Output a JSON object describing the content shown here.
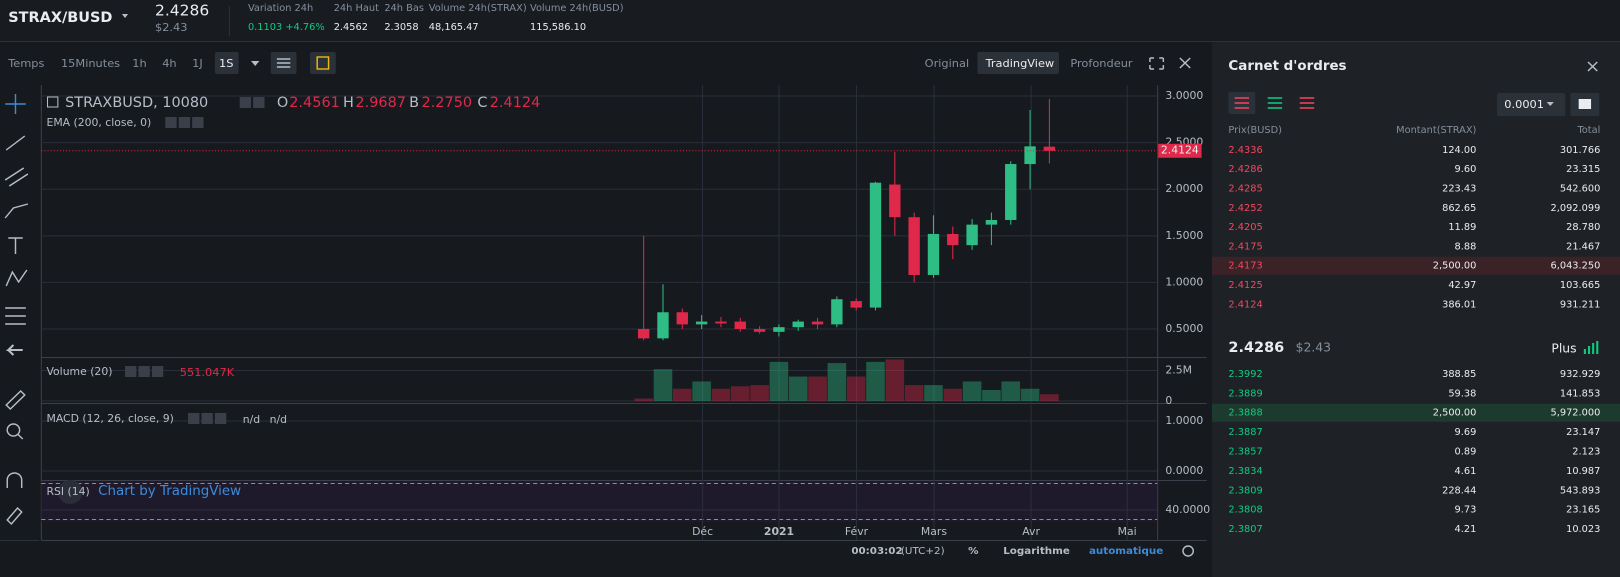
{
  "header": {
    "pair": "STRAX/BUSD",
    "price": "2.4286",
    "price_usd": "$2.43",
    "stats": [
      {
        "label": "Variation 24h",
        "value": "0.1103 +4.76%"
      },
      {
        "label": "24h Haut",
        "value": "2.4562"
      },
      {
        "label": "24h Bas",
        "value": "2.3058"
      },
      {
        "label": "Volume 24h(STRAX)",
        "value": "48,165.47"
      },
      {
        "label": "Volume 24h(BUSD)",
        "value": "115,586.10"
      }
    ]
  },
  "toolbar": {
    "intervals": [
      "Temps",
      "15Minutes",
      "1h",
      "4h",
      "1J",
      "1S"
    ],
    "views": [
      "Original",
      "TradingView",
      "Profondeur"
    ]
  },
  "chart": {
    "symbol": "STRAXBUSD, 10080",
    "ohlc": [
      {
        "key": "O",
        "value": "2.4561"
      },
      {
        "key": "H",
        "value": "2.9687"
      },
      {
        "key": "B",
        "value": "2.2750"
      },
      {
        "key": "C",
        "value": "2.4124"
      }
    ],
    "ema_label": "EMA (200, close, 0)",
    "last_price": {
      "value": 2.4124,
      "label": "2.4124"
    },
    "ylim": [
      0.2,
      3.118
    ],
    "yticks": [
      {
        "value": 0.5,
        "label": "0.5000"
      },
      {
        "value": 1.0,
        "label": "1.0000"
      },
      {
        "value": 1.5,
        "label": "1.5000"
      },
      {
        "value": 2.0,
        "label": "2.0000"
      },
      {
        "value": 2.5,
        "label": "2.5000"
      },
      {
        "value": 3.0,
        "label": "3.0000"
      }
    ],
    "up_color": "#2ebd85",
    "down_color": "#e0294a",
    "candles": [
      {
        "open": 0.5,
        "high": 1.5,
        "low": 0.38,
        "close": 0.4,
        "volume": 200000
      },
      {
        "open": 0.4,
        "high": 0.98,
        "low": 0.38,
        "close": 0.68,
        "volume": 2600000
      },
      {
        "open": 0.68,
        "high": 0.72,
        "low": 0.5,
        "close": 0.55,
        "volume": 1000000
      },
      {
        "open": 0.55,
        "high": 0.65,
        "low": 0.5,
        "close": 0.58,
        "volume": 1600000
      },
      {
        "open": 0.58,
        "high": 0.63,
        "low": 0.52,
        "close": 0.56,
        "volume": 1000000
      },
      {
        "open": 0.58,
        "high": 0.62,
        "low": 0.47,
        "close": 0.5,
        "volume": 1200000
      },
      {
        "open": 0.5,
        "high": 0.53,
        "low": 0.45,
        "close": 0.47,
        "volume": 1300000
      },
      {
        "open": 0.47,
        "high": 0.55,
        "low": 0.42,
        "close": 0.52,
        "volume": 3200000
      },
      {
        "open": 0.52,
        "high": 0.6,
        "low": 0.48,
        "close": 0.58,
        "volume": 2000000
      },
      {
        "open": 0.58,
        "high": 0.62,
        "low": 0.5,
        "close": 0.55,
        "volume": 2000000
      },
      {
        "open": 0.55,
        "high": 0.85,
        "low": 0.52,
        "close": 0.82,
        "volume": 3100000
      },
      {
        "open": 0.8,
        "high": 0.83,
        "low": 0.7,
        "close": 0.73,
        "volume": 2000000
      },
      {
        "open": 0.73,
        "high": 2.08,
        "low": 0.7,
        "close": 2.07,
        "volume": 3200000
      },
      {
        "open": 2.05,
        "high": 2.4,
        "low": 1.5,
        "close": 1.7,
        "volume": 3400000
      },
      {
        "open": 1.7,
        "high": 1.75,
        "low": 1.0,
        "close": 1.08,
        "volume": 1300000
      },
      {
        "open": 1.08,
        "high": 1.72,
        "low": 1.05,
        "close": 1.52,
        "volume": 1300000
      },
      {
        "open": 1.52,
        "high": 1.6,
        "low": 1.25,
        "close": 1.4,
        "volume": 1000000
      },
      {
        "open": 1.4,
        "high": 1.68,
        "low": 1.35,
        "close": 1.62,
        "volume": 1600000
      },
      {
        "open": 1.62,
        "high": 1.75,
        "low": 1.4,
        "close": 1.67,
        "volume": 900000
      },
      {
        "open": 1.67,
        "high": 2.3,
        "low": 1.62,
        "close": 2.27,
        "volume": 1600000
      },
      {
        "open": 2.27,
        "high": 2.85,
        "low": 2.0,
        "close": 2.46,
        "volume": 1000000
      },
      {
        "open": 2.4561,
        "high": 2.9687,
        "low": 2.275,
        "close": 2.4124,
        "volume": 551047
      }
    ],
    "volume_label": "Volume (20)",
    "volume_value": "551.047K",
    "volume_ylim": [
      0,
      3600000
    ],
    "volume_yticks": [
      {
        "value": 2500000,
        "label": "2.5M"
      },
      0
    ],
    "macd_label": "MACD (12, 26, close, 9)",
    "macd_values": [
      "n/d",
      "n/d"
    ],
    "macd_ylim": [
      -0.18,
      1.36
    ],
    "macd_yticks": [
      {
        "value": 1.0,
        "label": "1.0000"
      },
      {
        "value": 0.0,
        "label": "0.0000"
      }
    ],
    "rsi_label": "RSI (14)",
    "rsi_ylim": [
      26.7,
      73.3
    ],
    "rsi_yticks": [
      {
        "value": 40,
        "label": "40.0000"
      }
    ],
    "watermark": "Chart by TradingView",
    "xlabels": [
      "Déc",
      "2021",
      "Févr",
      "Mars",
      "Avr",
      "Mai"
    ]
  },
  "footer": {
    "time": "00:03:02",
    "timezone": "(UTC+2)",
    "percent": "%",
    "log": "Logarithme",
    "auto": "automatique"
  },
  "order_book": {
    "title": "Carnet d'ordres",
    "precision": "0.0001",
    "columns": [
      "Prix(BUSD)",
      "Montant(STRAX)",
      "Total"
    ],
    "asks": [
      {
        "price": "2.4336",
        "amount": "124.00",
        "total": "301.766"
      },
      {
        "price": "2.4286",
        "amount": "9.60",
        "total": "23.315"
      },
      {
        "price": "2.4285",
        "amount": "223.43",
        "total": "542.600"
      },
      {
        "price": "2.4252",
        "amount": "862.65",
        "total": "2,092.099"
      },
      {
        "price": "2.4205",
        "amount": "11.89",
        "total": "28.780"
      },
      {
        "price": "2.4175",
        "amount": "8.88",
        "total": "21.467"
      },
      {
        "price": "2.4173",
        "amount": "2,500.00",
        "total": "6,043.250",
        "highlight": true
      },
      {
        "price": "2.4125",
        "amount": "42.97",
        "total": "103.665"
      },
      {
        "price": "2.4124",
        "amount": "386.01",
        "total": "931.211"
      }
    ],
    "mid_price": "2.4286",
    "mid_usd": "$2.43",
    "more": "Plus",
    "bids": [
      {
        "price": "2.3992",
        "amount": "388.85",
        "total": "932.929"
      },
      {
        "price": "2.3889",
        "amount": "59.38",
        "total": "141.853"
      },
      {
        "price": "2.3888",
        "amount": "2,500.00",
        "total": "5,972.000",
        "highlight": true
      },
      {
        "price": "2.3887",
        "amount": "9.69",
        "total": "23.147"
      },
      {
        "price": "2.3857",
        "amount": "0.89",
        "total": "2.123"
      },
      {
        "price": "2.3834",
        "amount": "4.61",
        "total": "10.987"
      },
      {
        "price": "2.3809",
        "amount": "228.44",
        "total": "543.893"
      },
      {
        "price": "2.3808",
        "amount": "9.73",
        "total": "23.165"
      },
      {
        "price": "2.3807",
        "amount": "4.21",
        "total": "10.023"
      }
    ]
  }
}
